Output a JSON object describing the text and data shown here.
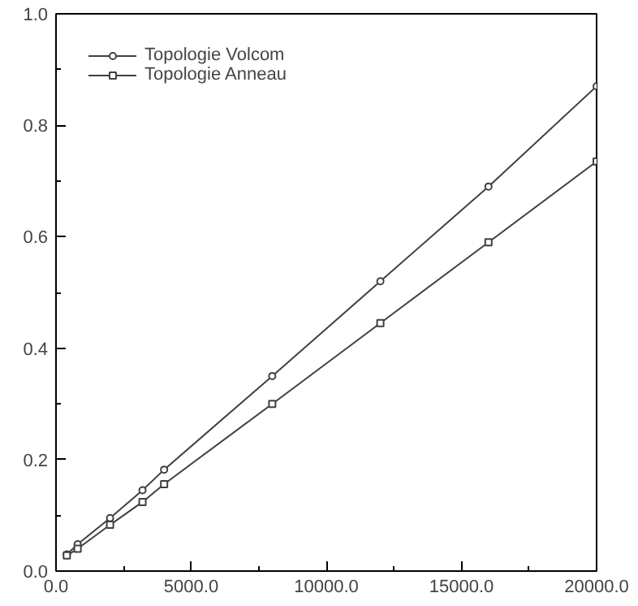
{
  "chart_data": {
    "type": "line",
    "x": [
      400,
      800,
      2000,
      3200,
      4000,
      8000,
      12000,
      16000,
      20000
    ],
    "series": [
      {
        "name": "Topologie Volcom",
        "color": "#404040",
        "marker": "circle",
        "values": [
          0.03,
          0.048,
          0.095,
          0.145,
          0.182,
          0.35,
          0.52,
          0.69,
          0.87
        ]
      },
      {
        "name": "Topologie Anneau",
        "color": "#404040",
        "marker": "square",
        "values": [
          0.028,
          0.04,
          0.083,
          0.124,
          0.156,
          0.3,
          0.445,
          0.59,
          0.735
        ]
      }
    ],
    "xlim": [
      0,
      20000
    ],
    "ylim": [
      0,
      1
    ],
    "xticks": [
      {
        "value": 0,
        "label": "0.0"
      },
      {
        "value": 5000,
        "label": "5000.0"
      },
      {
        "value": 10000,
        "label": "10000.0"
      },
      {
        "value": 15000,
        "label": "15000.0"
      },
      {
        "value": 20000,
        "label": "20000.0"
      }
    ],
    "yticks": [
      {
        "value": 0,
        "label": "0.0"
      },
      {
        "value": 0.2,
        "label": "0.2"
      },
      {
        "value": 0.4,
        "label": "0.4"
      },
      {
        "value": 0.6,
        "label": "0.6"
      },
      {
        "value": 0.8,
        "label": "0.8"
      },
      {
        "value": 1,
        "label": "1.0"
      }
    ],
    "grid": false,
    "legend": "top left",
    "line_style": "solid"
  }
}
